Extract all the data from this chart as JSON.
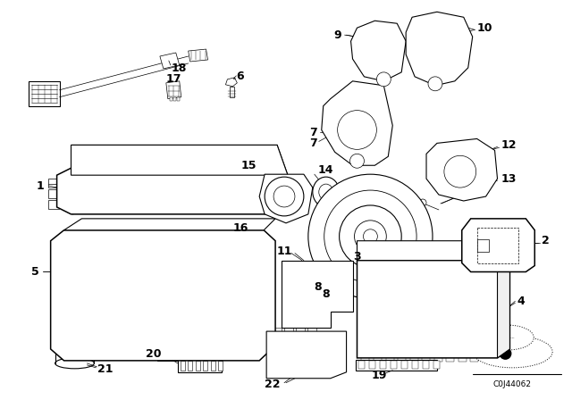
{
  "fig_width": 6.4,
  "fig_height": 4.48,
  "dpi": 100,
  "bg_color": "#ffffff",
  "diagram_code": "C0J44062",
  "label_fontsize": 9,
  "font_family": "DejaVu Sans"
}
